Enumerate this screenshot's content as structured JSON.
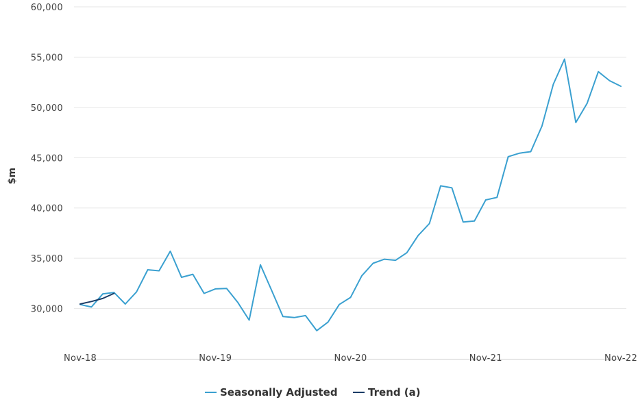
{
  "chart_data": {
    "type": "line",
    "title": "",
    "xlabel": "",
    "ylabel": "$m",
    "ylim": [
      25000,
      60000
    ],
    "yticks": [
      30000,
      35000,
      40000,
      45000,
      50000,
      55000,
      60000
    ],
    "ytick_labels": [
      "30,000",
      "35,000",
      "40,000",
      "45,000",
      "50,000",
      "55,000",
      "60,000"
    ],
    "x_start": "Nov-18",
    "x_end": "Dec-22",
    "xtick_labels": [
      "Nov-18",
      "Nov-19",
      "Nov-20",
      "Nov-21",
      "Nov-22"
    ],
    "grid": true,
    "legend": "bottom-center",
    "series": [
      {
        "name": "Seasonally Adjusted",
        "color": "#3aa0d0",
        "values": [
          30400,
          30150,
          31450,
          31600,
          30450,
          31650,
          33850,
          33750,
          35700,
          33100,
          33400,
          31500,
          31950,
          32000,
          30600,
          28850,
          34350,
          31800,
          29200,
          29100,
          29300,
          27800,
          28650,
          30400,
          31100,
          33250,
          34500,
          34900,
          34800,
          35550,
          37250,
          38450,
          42200,
          42000,
          38600,
          38700,
          40800,
          41050,
          45100,
          45450,
          45600,
          48150,
          52300,
          54800,
          48500,
          50400,
          53550,
          52650,
          52100
        ]
      },
      {
        "name": "Trend (a)",
        "color": "#1a3c66",
        "values": [
          30450,
          30700,
          31000,
          31500
        ]
      }
    ]
  }
}
